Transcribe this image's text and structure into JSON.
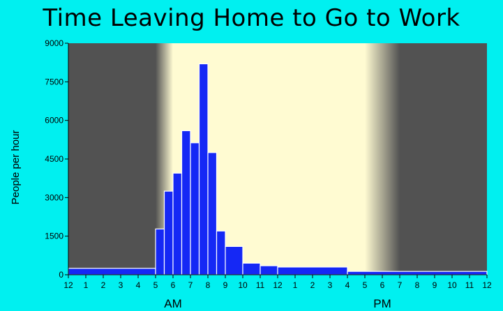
{
  "chart_data": {
    "type": "bar",
    "title": "Time Leaving Home to Go to Work",
    "xlabel": "",
    "ylabel": "People per hour",
    "ylim": [
      0,
      9000
    ],
    "yticks": [
      "0",
      "1500",
      "3000",
      "4500",
      "6000",
      "7500",
      "9000"
    ],
    "xticks": [
      "12",
      "1",
      "2",
      "3",
      "4",
      "5",
      "6",
      "7",
      "8",
      "9",
      "10",
      "11",
      "12",
      "1",
      "2",
      "3",
      "4",
      "5",
      "6",
      "7",
      "8",
      "9",
      "10",
      "11",
      "12"
    ],
    "period_labels": [
      "AM",
      "PM"
    ],
    "bins": [
      {
        "start": 0,
        "end": 5,
        "value": 250
      },
      {
        "start": 5,
        "end": 5.5,
        "value": 1780
      },
      {
        "start": 5.5,
        "end": 6,
        "value": 3250
      },
      {
        "start": 6,
        "end": 6.5,
        "value": 3950
      },
      {
        "start": 6.5,
        "end": 7,
        "value": 5600
      },
      {
        "start": 7,
        "end": 7.5,
        "value": 5130
      },
      {
        "start": 7.5,
        "end": 8,
        "value": 8200
      },
      {
        "start": 8,
        "end": 8.5,
        "value": 4750
      },
      {
        "start": 8.5,
        "end": 9,
        "value": 1700
      },
      {
        "start": 9,
        "end": 10,
        "value": 1100
      },
      {
        "start": 10,
        "end": 11,
        "value": 450
      },
      {
        "start": 11,
        "end": 12,
        "value": 350
      },
      {
        "start": 12,
        "end": 16,
        "value": 300
      },
      {
        "start": 16,
        "end": 24,
        "value": 130
      }
    ],
    "colors": {
      "bar": "#1528f5",
      "bar_edge": "#ffffff",
      "night": "#525252",
      "day": "#fffbd2",
      "background": "#00f0f0"
    },
    "grid": false
  }
}
